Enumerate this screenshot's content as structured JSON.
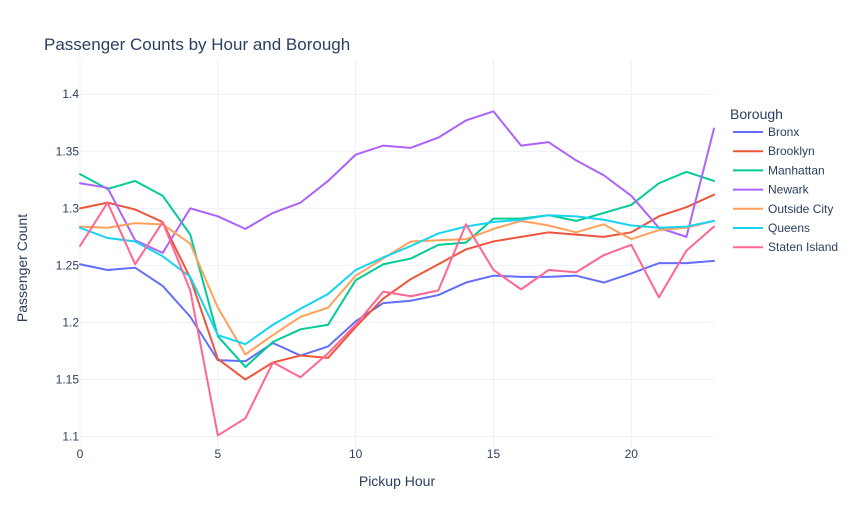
{
  "chart_data": {
    "type": "line",
    "title": "Passenger Counts by Hour and Borough",
    "xlabel": "Pickup Hour",
    "ylabel": "Passenger Count",
    "xlim": [
      0,
      23
    ],
    "ylim": [
      1.09,
      1.43
    ],
    "x_ticks": [
      0,
      5,
      10,
      15,
      20
    ],
    "y_ticks": [
      1.1,
      1.15,
      1.2,
      1.25,
      1.3,
      1.35,
      1.4
    ],
    "y_tick_labels": [
      "1.1",
      "1.15",
      "1.2",
      "1.25",
      "1.3",
      "1.35",
      "1.4"
    ],
    "grid": true,
    "legend_title": "Borough",
    "legend_position": "right",
    "x": [
      0,
      1,
      2,
      3,
      4,
      5,
      6,
      7,
      8,
      9,
      10,
      11,
      12,
      13,
      14,
      15,
      16,
      17,
      18,
      19,
      20,
      21,
      22,
      23
    ],
    "series": [
      {
        "name": "Bronx",
        "color": "#636efa",
        "values": [
          1.251,
          1.246,
          1.248,
          1.232,
          1.205,
          1.167,
          1.166,
          1.182,
          1.171,
          1.179,
          1.201,
          1.217,
          1.219,
          1.224,
          1.235,
          1.241,
          1.24,
          1.24,
          1.241,
          1.235,
          1.243,
          1.252,
          1.252,
          1.254
        ]
      },
      {
        "name": "Brooklyn",
        "color": "#ef553b",
        "values": [
          1.3,
          1.305,
          1.299,
          1.288,
          1.239,
          1.168,
          1.15,
          1.165,
          1.171,
          1.169,
          1.196,
          1.221,
          1.238,
          1.251,
          1.264,
          1.271,
          1.275,
          1.279,
          1.277,
          1.275,
          1.279,
          1.293,
          1.301,
          1.312
        ]
      },
      {
        "name": "Manhattan",
        "color": "#00cc96",
        "values": [
          1.33,
          1.317,
          1.324,
          1.311,
          1.277,
          1.188,
          1.161,
          1.183,
          1.194,
          1.198,
          1.237,
          1.251,
          1.256,
          1.268,
          1.27,
          1.291,
          1.291,
          1.294,
          1.289,
          1.296,
          1.303,
          1.322,
          1.332,
          1.324
        ]
      },
      {
        "name": "Newark",
        "color": "#ab63fa",
        "values": [
          1.322,
          1.318,
          1.272,
          1.261,
          1.3,
          1.293,
          1.282,
          1.296,
          1.305,
          1.324,
          1.347,
          1.355,
          1.353,
          1.362,
          1.377,
          1.385,
          1.355,
          1.358,
          1.342,
          1.329,
          1.311,
          1.283,
          1.275,
          1.37
        ]
      },
      {
        "name": "Outside City",
        "color": "#ffa15a",
        "values": [
          1.284,
          1.283,
          1.287,
          1.286,
          1.269,
          1.213,
          1.172,
          1.189,
          1.205,
          1.213,
          1.241,
          1.256,
          1.271,
          1.272,
          1.273,
          1.282,
          1.289,
          1.285,
          1.279,
          1.286,
          1.273,
          1.281,
          1.283,
          1.289
        ]
      },
      {
        "name": "Queens",
        "color": "#19d3f3",
        "values": [
          1.283,
          1.274,
          1.271,
          1.258,
          1.24,
          1.189,
          1.181,
          1.198,
          1.212,
          1.225,
          1.246,
          1.257,
          1.267,
          1.278,
          1.284,
          1.288,
          1.29,
          1.294,
          1.293,
          1.29,
          1.285,
          1.283,
          1.284,
          1.289
        ]
      },
      {
        "name": "Staten Island",
        "color": "#ff6692",
        "values": [
          1.267,
          1.305,
          1.251,
          1.288,
          1.228,
          1.101,
          1.116,
          1.165,
          1.152,
          1.173,
          1.198,
          1.227,
          1.223,
          1.228,
          1.286,
          1.246,
          1.229,
          1.246,
          1.244,
          1.259,
          1.268,
          1.222,
          1.263,
          1.284
        ]
      }
    ]
  }
}
